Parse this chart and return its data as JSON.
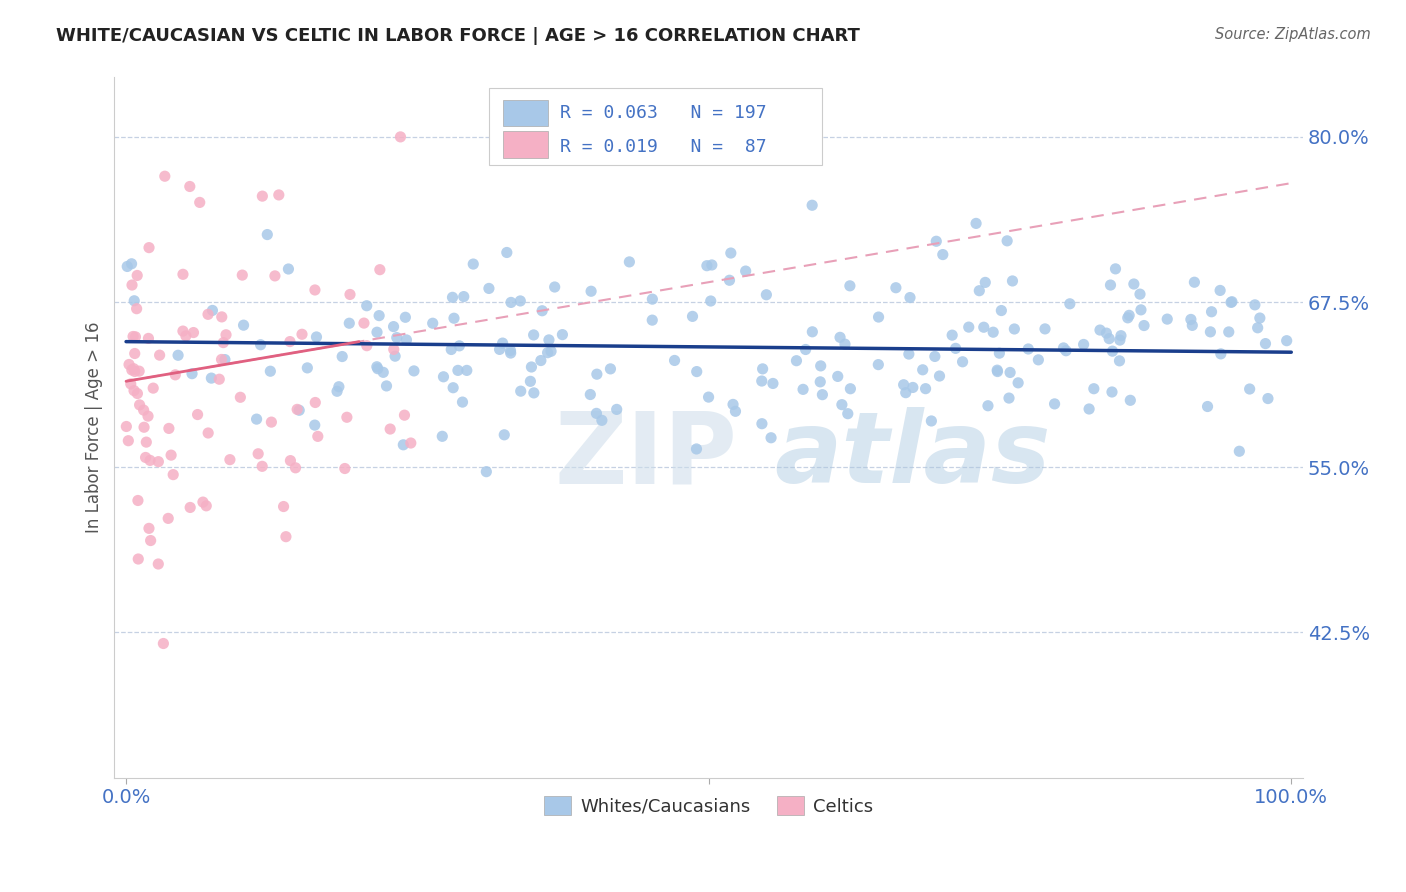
{
  "title": "WHITE/CAUCASIAN VS CELTIC IN LABOR FORCE | AGE > 16 CORRELATION CHART",
  "source": "Source: ZipAtlas.com",
  "ylabel": "In Labor Force | Age > 16",
  "xlim": [
    -0.01,
    1.01
  ],
  "ylim": [
    0.315,
    0.845
  ],
  "yticks": [
    0.425,
    0.55,
    0.675,
    0.8
  ],
  "ytick_labels": [
    "42.5%",
    "55.0%",
    "67.5%",
    "80.0%"
  ],
  "xticks": [
    0.0,
    0.5,
    1.0
  ],
  "xtick_labels": [
    "0.0%",
    "",
    "100.0%"
  ],
  "blue_scatter_color": "#a8c8e8",
  "blue_line_color": "#1a3e8c",
  "pink_scatter_color": "#f5b0c5",
  "pink_line_color": "#e06080",
  "pink_dash_color": "#e8a0b8",
  "label_color": "#4472c4",
  "legend_R1": "0.063",
  "legend_N1": "197",
  "legend_R2": "0.019",
  "legend_N2": " 87",
  "legend_label1": "Whites/Caucasians",
  "legend_label2": "Celtics",
  "seed": 99
}
